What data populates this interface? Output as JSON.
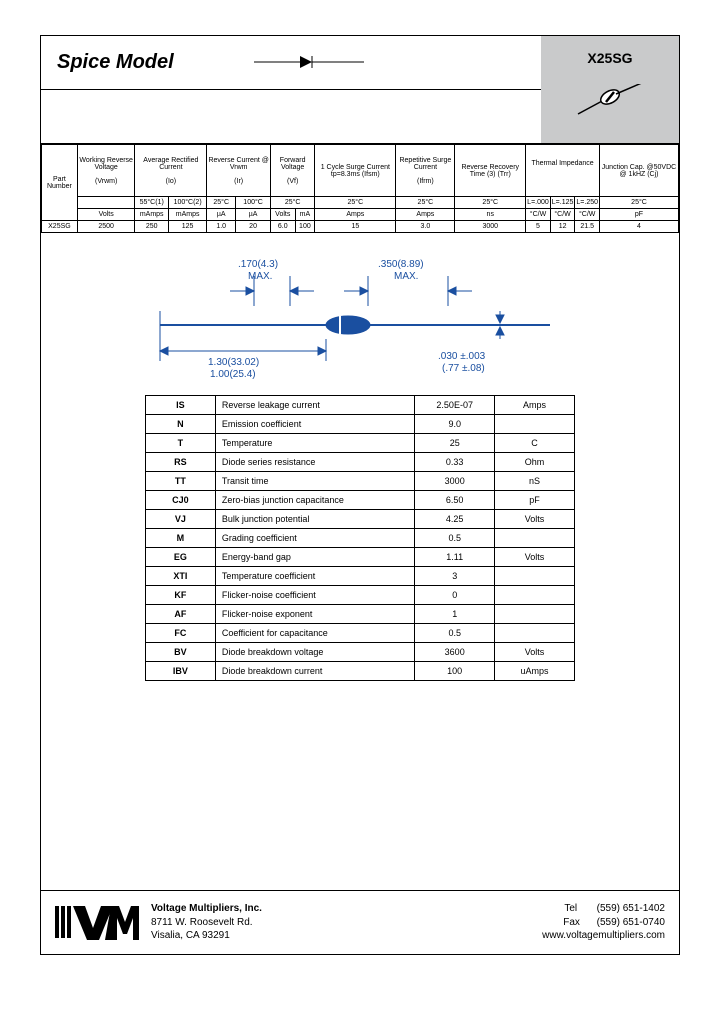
{
  "header": {
    "title": "Spice Model",
    "part": "X25SG"
  },
  "specHeaders": {
    "c0": "Part Number",
    "c1": "Working Reverse Voltage",
    "c1s": "(Vrwm)",
    "c2": "Average Rectified Current",
    "c2s": "(Io)",
    "c3": "Reverse Current @ Vrwm",
    "c3s": "(Ir)",
    "c4": "Forward Voltage",
    "c4s": "(Vf)",
    "c5": "1 Cycle Surge Current tp=8.3ms (Ifsm)",
    "c6": "Repetitive Surge Current",
    "c6s": "(Ifrm)",
    "c7": "Reverse Recovery Time (3) (Trr)",
    "c8": "Thermal Impedance",
    "c9": "Junction Cap. @50VDC @ 1kHZ (Cj)"
  },
  "specSub": {
    "t55": "55°C(1)",
    "t100c": "100°C(2)",
    "t25": "25°C",
    "t100": "100°C",
    "l000": "L=.000",
    "l125": "L=.125",
    "l250": "L=.250"
  },
  "specUnits": {
    "volts": "Volts",
    "mamps": "mAmps",
    "ua": "µA",
    "ma": "mA",
    "amps": "Amps",
    "ns": "ns",
    "cw": "°C/W",
    "pf": "pF"
  },
  "specRow": {
    "pn": "X25SG",
    "vrwm": "2500",
    "io55": "250",
    "io100": "125",
    "ir25": "1.0",
    "ir100": "20",
    "vfv": "6.0",
    "vfma": "100",
    "ifsm": "15",
    "ifrm": "3.0",
    "trr": "3000",
    "z0": "5",
    "z1": "12",
    "z2": "21.5",
    "cj": "4"
  },
  "dims": {
    "a": ".170(4.3)",
    "amax": "MAX.",
    "b": ".350(8.89)",
    "bmax": "MAX.",
    "c1": "1.30(33.02)",
    "c2": "1.00(25.4)",
    "d1": ".030 ±.003",
    "d2": "(.77 ±.08)"
  },
  "params": [
    {
      "s": "IS",
      "d": "Reverse leakage current",
      "v": "2.50E-07",
      "u": "Amps"
    },
    {
      "s": "N",
      "d": "Emission coefficient",
      "v": "9.0",
      "u": ""
    },
    {
      "s": "T",
      "d": "Temperature",
      "v": "25",
      "u": "C"
    },
    {
      "s": "RS",
      "d": "Diode series resistance",
      "v": "0.33",
      "u": "Ohm"
    },
    {
      "s": "TT",
      "d": "Transit time",
      "v": "3000",
      "u": "nS"
    },
    {
      "s": "CJ0",
      "d": "Zero-bias junction capacitance",
      "v": "6.50",
      "u": "pF"
    },
    {
      "s": "VJ",
      "d": "Bulk junction potential",
      "v": "4.25",
      "u": "Volts"
    },
    {
      "s": "M",
      "d": "Grading coefficient",
      "v": "0.5",
      "u": ""
    },
    {
      "s": "EG",
      "d": "Energy-band gap",
      "v": "1.11",
      "u": "Volts"
    },
    {
      "s": "XTI",
      "d": "Temperature coefficient",
      "v": "3",
      "u": ""
    },
    {
      "s": "KF",
      "d": "Flicker-noise coefficient",
      "v": "0",
      "u": ""
    },
    {
      "s": "AF",
      "d": "Flicker-noise exponent",
      "v": "1",
      "u": ""
    },
    {
      "s": "FC",
      "d": "Coefficient for capacitance",
      "v": "0.5",
      "u": ""
    },
    {
      "s": "BV",
      "d": "Diode breakdown voltage",
      "v": "3600",
      "u": "Volts"
    },
    {
      "s": "IBV",
      "d": "Diode breakdown current",
      "v": "100",
      "u": "uAmps"
    }
  ],
  "footer": {
    "company": "Voltage Multipliers, Inc.",
    "addr1": "8711 W. Roosevelt Rd.",
    "addr2": "Visalia, CA  93291",
    "telLabel": "Tel",
    "tel": "(559) 651-1402",
    "faxLabel": "Fax",
    "fax": "(559) 651-0740",
    "web": "www.voltagemultipliers.com",
    "logo": "VMI"
  },
  "colors": {
    "headerGray": "#c9cacb",
    "border": "#000000",
    "diagramBlue": "#1a4fa0"
  }
}
